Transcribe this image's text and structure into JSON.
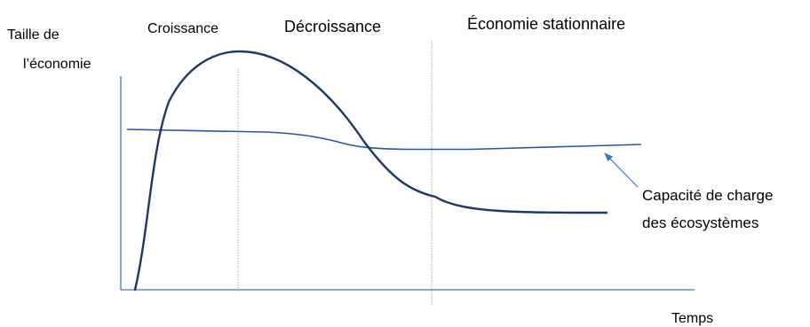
{
  "y_axis_label": [
    "Taille de",
    "l’économie"
  ],
  "x_axis_label": "Temps",
  "phases": [
    "Croissance",
    "Décroissance",
    "Économie stationnaire"
  ],
  "annotation": [
    "Capacité de charge",
    "des écosystèmes"
  ],
  "colors": {
    "axis": "#4472C4",
    "curve": "#1F3864",
    "capacity_line": "#2F5496",
    "arrow": "#4472C4",
    "divider": "#8EA9DB"
  }
}
